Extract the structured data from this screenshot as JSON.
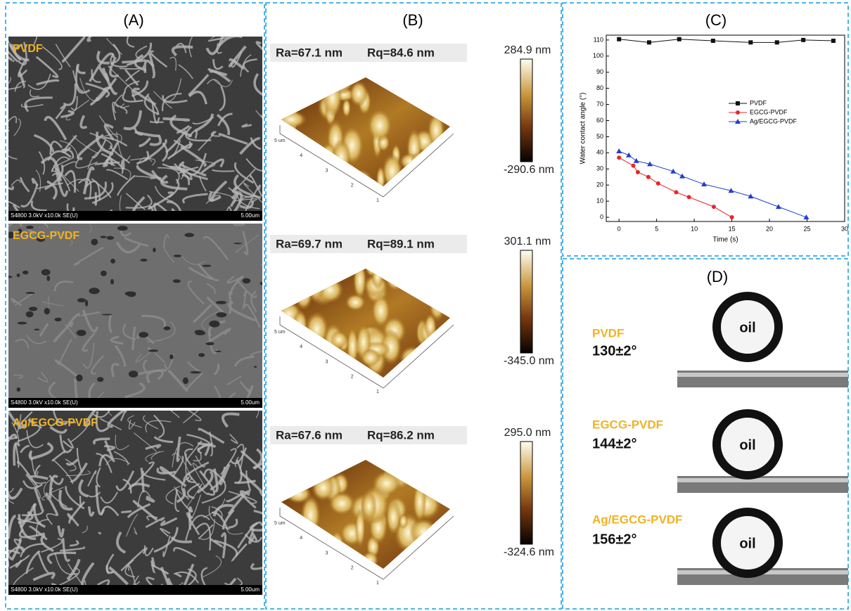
{
  "panel_a": {
    "label": "(A)",
    "images": [
      {
        "sample": "PVDF",
        "instrument": "S4800 3.0kV x10.0k SE(U)",
        "scale": "5.00um"
      },
      {
        "sample": "EGCG-PVDF",
        "instrument": "S4800 3.0kV x10.0k SE(U)",
        "scale": "5.00um"
      },
      {
        "sample": "Ag/EGCG-PVDF",
        "instrument": "S4800 3.0kV x10.0k SE(U)",
        "scale": "5.00um"
      }
    ]
  },
  "panel_b": {
    "label": "(B)",
    "maps": [
      {
        "ra": "Ra=67.1 nm",
        "rq": "Rq=84.6 nm",
        "scale_max": "284.9 nm",
        "scale_min": "-290.6 nm",
        "axis_ticks": [
          "5 um",
          "4",
          "3",
          "2",
          "1"
        ]
      },
      {
        "ra": "Ra=69.7 nm",
        "rq": "Rq=89.1 nm",
        "scale_max": "301.1 nm",
        "scale_min": "-345.0 nm",
        "axis_ticks": [
          "5 um",
          "4",
          "3",
          "2",
          "1"
        ]
      },
      {
        "ra": "Ra=67.6 nm",
        "rq": "Rq=86.2 nm",
        "scale_max": "295.0 nm",
        "scale_min": "-324.6 nm",
        "axis_ticks": [
          "5 um",
          "4",
          "3",
          "2",
          "1"
        ]
      }
    ]
  },
  "panel_c": {
    "label": "(C)"
  },
  "chart_data": {
    "type": "line",
    "xlabel": "Time (s)",
    "ylabel": "Water contact angle (°)",
    "xlim": [
      -1.7,
      30
    ],
    "ylim": [
      -2.6,
      113
    ],
    "xticks": [
      0,
      5,
      10,
      15,
      20,
      25,
      30
    ],
    "yticks": [
      0,
      10,
      20,
      30,
      40,
      50,
      60,
      70,
      80,
      90,
      100,
      110
    ],
    "series": [
      {
        "name": "PVDF",
        "color": "#111111",
        "marker": "square",
        "x": [
          0,
          4,
          8,
          12.5,
          17.5,
          21,
          24.5,
          28.5
        ],
        "values": [
          110.5,
          108.5,
          110.5,
          109.5,
          108.5,
          108.5,
          110,
          109.5
        ]
      },
      {
        "name": "EGCG-PVDF",
        "color": "#e8262a",
        "marker": "circle",
        "x": [
          0,
          1.9,
          2.5,
          3.9,
          5.2,
          7.6,
          9.3,
          12.6,
          15
        ],
        "values": [
          37,
          32,
          28,
          25,
          21,
          15.5,
          12.5,
          6.5,
          0
        ]
      },
      {
        "name": "Ag/EGCG-PVDF",
        "color": "#1f3fd0",
        "marker": "triangle",
        "x": [
          0,
          1.3,
          2.3,
          4.1,
          7.2,
          8.4,
          11.3,
          14.9,
          17.5,
          21.2,
          24.9
        ],
        "values": [
          41,
          38.5,
          35,
          33,
          28.5,
          25.5,
          20.5,
          16.5,
          13,
          6.5,
          0
        ]
      }
    ]
  },
  "panel_d": {
    "label": "(D)",
    "drops": [
      {
        "sample": "PVDF",
        "angle": "130±2°",
        "liquid": "oil"
      },
      {
        "sample": "EGCG-PVDF",
        "angle": "144±2°",
        "liquid": "oil"
      },
      {
        "sample": "Ag/EGCG-PVDF",
        "angle": "156±2°",
        "liquid": "oil"
      }
    ]
  }
}
